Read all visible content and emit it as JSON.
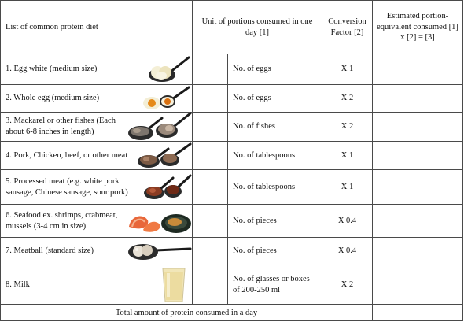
{
  "table": {
    "header": {
      "name": "List of common protein diet",
      "unit": "Unit of portions consumed in one day [1]",
      "factor": "Conversion Factor [2]",
      "estimate": "Estimated portion-equivalent consumed [1] x [2] = [3]"
    },
    "rows": [
      {
        "name": "1. Egg white (medium size)",
        "unit": "No. of eggs",
        "factor": "X 1",
        "icon": "egg-white-spoon-icon"
      },
      {
        "name": "2. Whole egg (medium size)",
        "unit": "No. of eggs",
        "factor": "X 2",
        "icon": "whole-egg-spoon-icon"
      },
      {
        "name": "3. Mackarel or other fishes (Each about 6-8 inches in length)",
        "unit": "No. of fishes",
        "factor": "X 2",
        "icon": "fish-spoon-icon"
      },
      {
        "name": "4. Pork, Chicken, beef, or other meat",
        "unit": "No. of tablespoons",
        "factor": "X 1",
        "icon": "meat-spoon-icon"
      },
      {
        "name": "5. Processed meat (e.g. white pork sausage, Chinese sausage, sour pork)",
        "unit": "No. of tablespoons",
        "factor": "X 1",
        "icon": "sausage-spoon-icon"
      },
      {
        "name": "6. Seafood ex. shrimps, crabmeat, mussels (3-4 cm in size)",
        "unit": "No. of pieces",
        "factor": "X 0.4",
        "icon": "seafood-icon"
      },
      {
        "name": "7. Meatball (standard size)",
        "unit": "No. of pieces",
        "factor": "X 0.4",
        "icon": "meatball-spoon-icon"
      },
      {
        "name": "8. Milk",
        "unit": "No. of glasses or boxes of 200-250 ml",
        "factor": "X 2",
        "icon": "milk-glass-icon"
      }
    ],
    "total": "Total amount of protein consumed in a day"
  }
}
